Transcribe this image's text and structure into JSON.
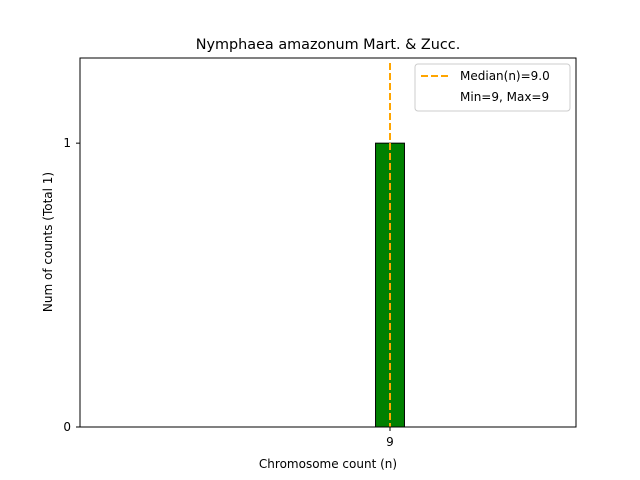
{
  "chart_data": {
    "type": "bar",
    "title": "Nymphaea amazonum Mart. & Zucc.",
    "xlabel": "Chromosome count (n)",
    "ylabel": "Num of counts     (Total 1)",
    "categories": [
      "9"
    ],
    "values": [
      1
    ],
    "bar_color": "#008000",
    "xlim": [
      6.0,
      10.8
    ],
    "ylim": [
      0,
      1.3
    ],
    "x_ticks": [
      9
    ],
    "y_ticks": [
      0,
      1
    ],
    "grid": false,
    "median": {
      "value": 9.0,
      "color": "#FFA500",
      "style": "dashed"
    },
    "legend": {
      "position": "top-right",
      "entries": [
        "Median(n)=9.0",
        "Min=9, Max=9"
      ]
    }
  }
}
